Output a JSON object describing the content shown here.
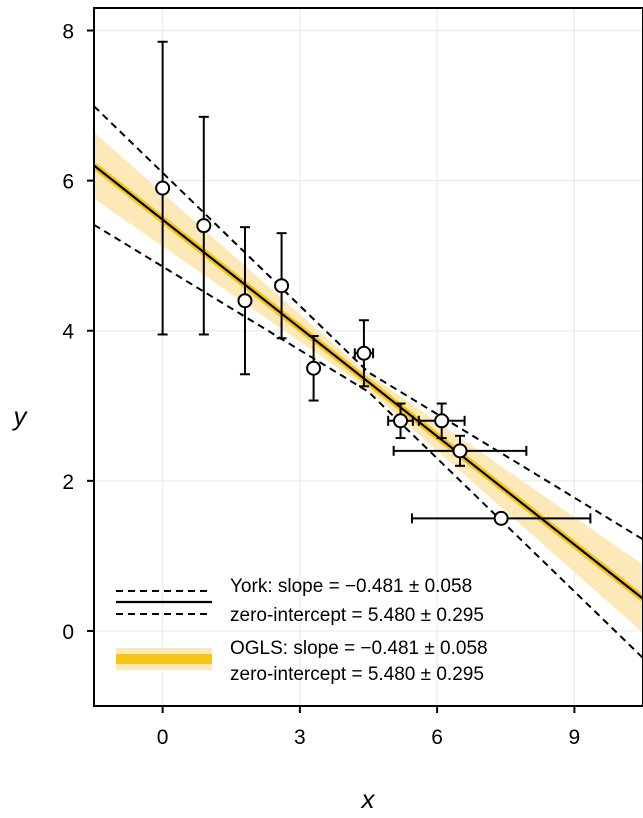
{
  "chart_data": {
    "type": "scatter",
    "title": "",
    "xlabel": "x",
    "ylabel": "y",
    "xlim": [
      -1.5,
      10.5
    ],
    "ylim": [
      -1.0,
      8.3
    ],
    "xticks": [
      0,
      3,
      6,
      9
    ],
    "yticks": [
      0,
      2,
      4,
      6,
      8
    ],
    "grid": true,
    "legend_position": "bottom-left",
    "colors": {
      "ogls_line": "#f6c518",
      "ogls_band": "#fde9b8",
      "york_line": "#000000",
      "markers": "#ffffff",
      "axes": "#000000",
      "grid": "#ececec"
    },
    "points": [
      {
        "x": 0.0,
        "y": 5.9,
        "sx": 0.0,
        "sy": 1.95
      },
      {
        "x": 0.9,
        "y": 5.4,
        "sx": 0.0,
        "sy": 1.45
      },
      {
        "x": 1.8,
        "y": 4.4,
        "sx": 0.0,
        "sy": 0.98
      },
      {
        "x": 2.6,
        "y": 4.6,
        "sx": 0.0,
        "sy": 0.7
      },
      {
        "x": 3.3,
        "y": 3.5,
        "sx": 0.0,
        "sy": 0.43
      },
      {
        "x": 4.4,
        "y": 3.7,
        "sx": 0.2,
        "sy": 0.44
      },
      {
        "x": 5.2,
        "y": 2.8,
        "sx": 0.27,
        "sy": 0.23
      },
      {
        "x": 6.1,
        "y": 2.8,
        "sx": 0.5,
        "sy": 0.23
      },
      {
        "x": 6.5,
        "y": 2.4,
        "sx": 1.45,
        "sy": 0.2
      },
      {
        "x": 7.4,
        "y": 1.5,
        "sx": 1.95,
        "sy": 0.05
      }
    ],
    "fit": {
      "slope": -0.481,
      "intercept": 5.48,
      "band_x_center": 4.4,
      "band_center_halfwidth": 0.1,
      "band_slope_halfwidth": 0.058,
      "dashed_x_center": 4.5,
      "dashed_center_halfwidth": 0.13,
      "dashed_slope_halfwidth": 0.11
    },
    "legend": {
      "york_line1": "York: slope = −0.481 ± 0.058",
      "york_line2": "zero-intercept = 5.480 ± 0.295",
      "ogls_line1": "OGLS: slope = −0.481 ± 0.058",
      "ogls_line2": "zero-intercept = 5.480 ± 0.295"
    }
  }
}
